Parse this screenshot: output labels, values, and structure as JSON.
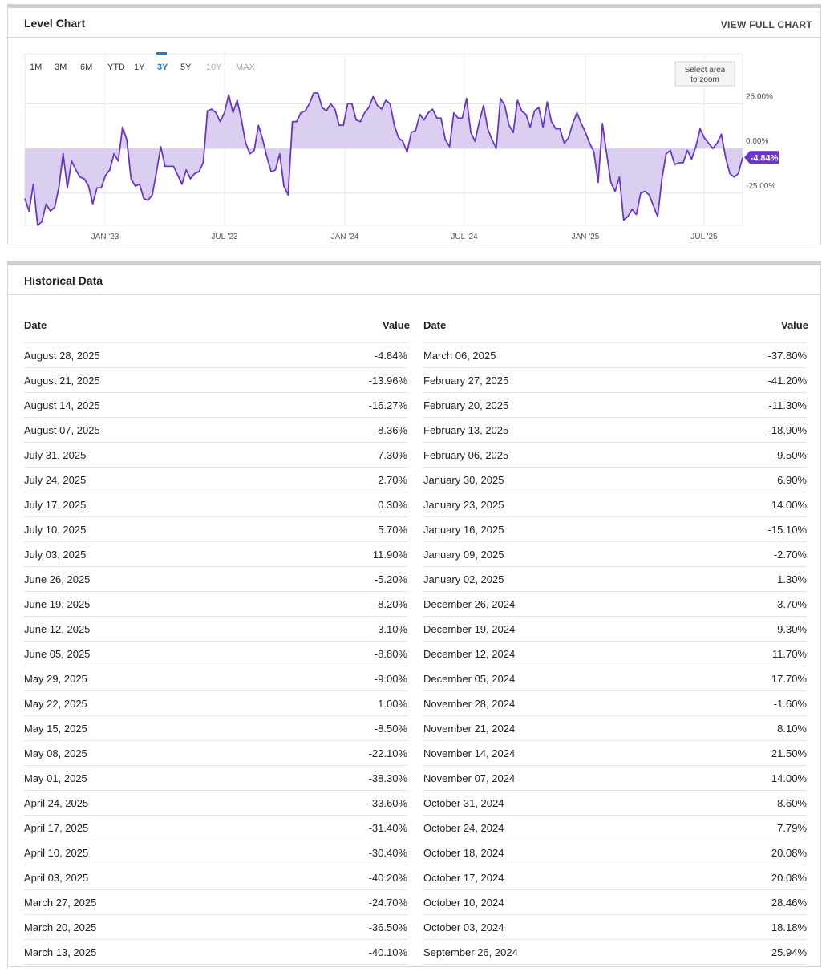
{
  "chart_panel": {
    "title": "Level Chart",
    "view_full": "VIEW FULL CHART"
  },
  "chart_data": {
    "type": "area",
    "title": "Level Chart",
    "ranges": [
      "1M",
      "3M",
      "6M",
      "YTD",
      "1Y",
      "3Y",
      "5Y",
      "10Y",
      "MAX"
    ],
    "active_range": "3Y",
    "disabled_ranges": [
      "10Y",
      "MAX"
    ],
    "zoom_hint": "Select area to zoom",
    "y_ticks": [
      "25.00%",
      "0.00%",
      "-25.00%"
    ],
    "x_ticks": [
      "JAN '23",
      "JUL '23",
      "JAN '24",
      "JUL '24",
      "JAN '25",
      "JUL '25"
    ],
    "ylim": [
      -43,
      53
    ],
    "last_value_label": "-4.84%",
    "series": [
      {
        "values": [
          -28,
          -35,
          -20,
          -43,
          -41,
          -31,
          -35,
          -33,
          -22,
          -3,
          -22,
          -7,
          -12,
          -16,
          -17,
          -21,
          -31,
          -22,
          -22,
          -15,
          -12,
          -3,
          -7,
          12,
          5,
          -17,
          -21,
          -20,
          -28,
          -29,
          -26,
          -13,
          1,
          -10,
          -10,
          -10,
          -15,
          -20,
          -12,
          -17,
          -14,
          -13,
          -8,
          21,
          22,
          20,
          15,
          20,
          30,
          20,
          27,
          16,
          3,
          -3,
          -1,
          13,
          5,
          -5,
          -13,
          -12,
          -3,
          -21,
          -26,
          15,
          15,
          20,
          21,
          25,
          31,
          31,
          23,
          21,
          25,
          22,
          13,
          13,
          25,
          25,
          16,
          15,
          20,
          23,
          29,
          24,
          22,
          27,
          25,
          13,
          6,
          4,
          -2,
          9,
          10,
          19,
          16,
          20,
          22,
          17,
          17,
          5,
          1,
          20,
          17,
          17,
          28,
          9,
          4,
          15,
          24,
          11,
          5,
          0,
          28,
          24,
          13,
          9,
          27,
          21,
          19,
          12,
          21,
          23,
          12,
          26,
          15,
          11,
          11,
          3,
          6,
          14,
          20,
          14,
          9,
          3,
          -2,
          -19,
          14,
          -3,
          -19,
          -24,
          -16,
          -40,
          -38,
          -34,
          -37,
          -25,
          -24,
          -26,
          -32,
          -38,
          -17,
          -3,
          -1,
          -9,
          -8,
          -8,
          -1,
          -6,
          1,
          11,
          6,
          3,
          0,
          3,
          8,
          -5,
          -14,
          -16,
          -14,
          -5
        ]
      }
    ]
  },
  "table_panel": {
    "title": "Historical Data",
    "col_date": "Date",
    "col_value": "Value",
    "left": [
      {
        "date": "August 28, 2025",
        "value": "-4.84%"
      },
      {
        "date": "August 21, 2025",
        "value": "-13.96%"
      },
      {
        "date": "August 14, 2025",
        "value": "-16.27%"
      },
      {
        "date": "August 07, 2025",
        "value": "-8.36%"
      },
      {
        "date": "July 31, 2025",
        "value": "7.30%"
      },
      {
        "date": "July 24, 2025",
        "value": "2.70%"
      },
      {
        "date": "July 17, 2025",
        "value": "0.30%"
      },
      {
        "date": "July 10, 2025",
        "value": "5.70%"
      },
      {
        "date": "July 03, 2025",
        "value": "11.90%"
      },
      {
        "date": "June 26, 2025",
        "value": "-5.20%"
      },
      {
        "date": "June 19, 2025",
        "value": "-8.20%"
      },
      {
        "date": "June 12, 2025",
        "value": "3.10%"
      },
      {
        "date": "June 05, 2025",
        "value": "-8.80%"
      },
      {
        "date": "May 29, 2025",
        "value": "-9.00%"
      },
      {
        "date": "May 22, 2025",
        "value": "1.00%"
      },
      {
        "date": "May 15, 2025",
        "value": "-8.50%"
      },
      {
        "date": "May 08, 2025",
        "value": "-22.10%"
      },
      {
        "date": "May 01, 2025",
        "value": "-38.30%"
      },
      {
        "date": "April 24, 2025",
        "value": "-33.60%"
      },
      {
        "date": "April 17, 2025",
        "value": "-31.40%"
      },
      {
        "date": "April 10, 2025",
        "value": "-30.40%"
      },
      {
        "date": "April 03, 2025",
        "value": "-40.20%"
      },
      {
        "date": "March 27, 2025",
        "value": "-24.70%"
      },
      {
        "date": "March 20, 2025",
        "value": "-36.50%"
      },
      {
        "date": "March 13, 2025",
        "value": "-40.10%"
      }
    ],
    "right": [
      {
        "date": "March 06, 2025",
        "value": "-37.80%"
      },
      {
        "date": "February 27, 2025",
        "value": "-41.20%"
      },
      {
        "date": "February 20, 2025",
        "value": "-11.30%"
      },
      {
        "date": "February 13, 2025",
        "value": "-18.90%"
      },
      {
        "date": "February 06, 2025",
        "value": "-9.50%"
      },
      {
        "date": "January 30, 2025",
        "value": "6.90%"
      },
      {
        "date": "January 23, 2025",
        "value": "14.00%"
      },
      {
        "date": "January 16, 2025",
        "value": "-15.10%"
      },
      {
        "date": "January 09, 2025",
        "value": "-2.70%"
      },
      {
        "date": "January 02, 2025",
        "value": "1.30%"
      },
      {
        "date": "December 26, 2024",
        "value": "3.70%"
      },
      {
        "date": "December 19, 2024",
        "value": "9.30%"
      },
      {
        "date": "December 12, 2024",
        "value": "11.70%"
      },
      {
        "date": "December 05, 2024",
        "value": "17.70%"
      },
      {
        "date": "November 28, 2024",
        "value": "-1.60%"
      },
      {
        "date": "November 21, 2024",
        "value": "8.10%"
      },
      {
        "date": "November 14, 2024",
        "value": "21.50%"
      },
      {
        "date": "November 07, 2024",
        "value": "14.00%"
      },
      {
        "date": "October 31, 2024",
        "value": "8.60%"
      },
      {
        "date": "October 24, 2024",
        "value": "7.79%"
      },
      {
        "date": "October 18, 2024",
        "value": "20.08%"
      },
      {
        "date": "October 17, 2024",
        "value": "20.08%"
      },
      {
        "date": "October 10, 2024",
        "value": "28.46%"
      },
      {
        "date": "October 03, 2024",
        "value": "18.18%"
      },
      {
        "date": "September 26, 2024",
        "value": "25.94%"
      }
    ]
  },
  "colors": {
    "line": "#6a35c9",
    "fill": "#d8ccef",
    "active": "#1a7fd4",
    "disabled": "#aaaaaa",
    "badge": "#6a35c9"
  }
}
